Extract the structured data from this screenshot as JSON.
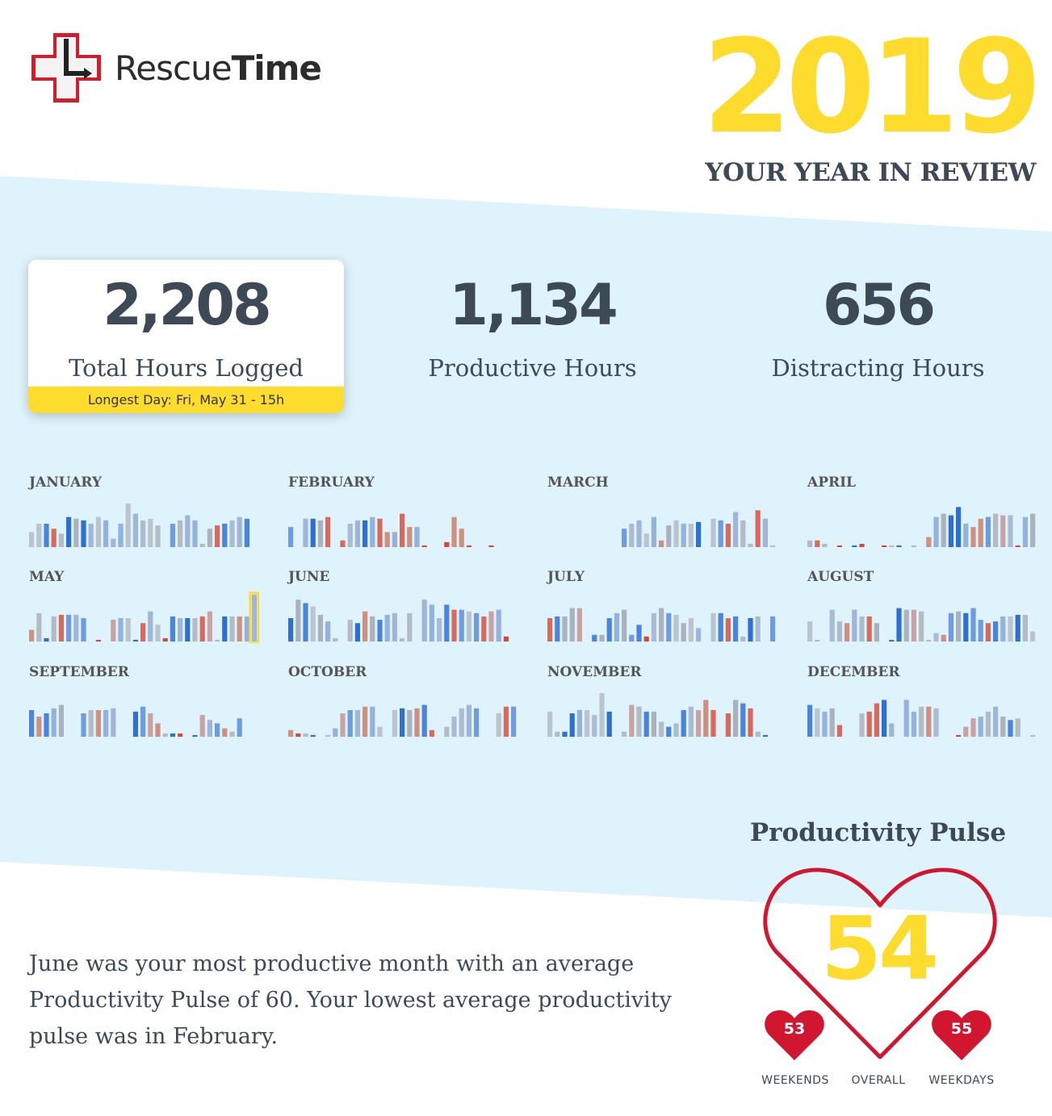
{
  "brand": {
    "name_light": "Rescue",
    "name_bold": "Time"
  },
  "header": {
    "year": "2019",
    "subtitle": "YOUR YEAR IN REVIEW"
  },
  "colors": {
    "accent_yellow": "#fddc2e",
    "band_blue": "#dff3fd",
    "heart_red": "#d0172f",
    "productive_blue": "#3a7bd5",
    "distracting_red": "#d44a3a",
    "neutral_gray": "#b0bcc6"
  },
  "stats": {
    "total": {
      "value": "2,208",
      "label": "Total Hours Logged",
      "footnote": "Longest Day: Fri, May 31 - 15h"
    },
    "productive": {
      "value": "1,134",
      "label": "Productive Hours"
    },
    "distracting": {
      "value": "656",
      "label": "Distracting Hours"
    }
  },
  "months": [
    {
      "name": "JANUARY",
      "days": [
        9,
        14,
        14,
        11,
        8,
        18,
        17,
        16,
        14,
        18,
        16,
        5,
        14,
        26,
        20,
        16,
        17,
        13,
        0,
        14,
        16,
        19,
        16,
        2,
        11,
        13,
        14,
        16,
        18,
        17,
        0
      ]
    },
    {
      "name": "FEBRUARY",
      "days": [
        12,
        0,
        17,
        17,
        16,
        18,
        0,
        4,
        14,
        16,
        16,
        18,
        17,
        9,
        9,
        20,
        12,
        12,
        1,
        0,
        0,
        3,
        18,
        11,
        1,
        0,
        0,
        1
      ]
    },
    {
      "name": "MARCH",
      "days": [
        0,
        0,
        0,
        0,
        0,
        0,
        0,
        0,
        0,
        0,
        11,
        14,
        16,
        8,
        18,
        4,
        13,
        16,
        14,
        14,
        15,
        0,
        17,
        16,
        14,
        21,
        16,
        2,
        22,
        17,
        1
      ]
    },
    {
      "name": "APRIL",
      "days": [
        4,
        4,
        2,
        0,
        1,
        0,
        1,
        2,
        0,
        0,
        1,
        1,
        1,
        0,
        1,
        0,
        6,
        18,
        20,
        19,
        24,
        14,
        12,
        17,
        18,
        20,
        19,
        19,
        1,
        18,
        20
      ]
    },
    {
      "name": "MAY",
      "days": [
        7,
        17,
        2,
        15,
        16,
        16,
        16,
        14,
        0,
        1,
        0,
        13,
        14,
        14,
        1,
        11,
        18,
        10,
        2,
        15,
        14,
        14,
        14,
        15,
        18,
        1,
        15,
        15,
        15,
        15,
        28
      ]
    },
    {
      "name": "JUNE",
      "days": [
        14,
        25,
        23,
        21,
        16,
        12,
        2,
        0,
        13,
        11,
        18,
        15,
        13,
        16,
        17,
        2,
        17,
        0,
        25,
        22,
        14,
        22,
        19,
        19,
        18,
        17,
        15,
        18,
        19,
        3,
        0
      ]
    },
    {
      "name": "JULY",
      "days": [
        14,
        15,
        15,
        20,
        20,
        0,
        4,
        4,
        14,
        17,
        19,
        4,
        10,
        3,
        17,
        20,
        17,
        16,
        11,
        14,
        8,
        0,
        17,
        17,
        14,
        15,
        3,
        14,
        15,
        0,
        15
      ]
    },
    {
      "name": "AUGUST",
      "days": [
        12,
        1,
        0,
        19,
        12,
        11,
        19,
        15,
        15,
        11,
        0,
        1,
        20,
        19,
        19,
        18,
        1,
        5,
        4,
        17,
        18,
        17,
        20,
        13,
        11,
        12,
        15,
        15,
        16,
        16,
        6
      ]
    },
    {
      "name": "SEPTEMBER",
      "days": [
        16,
        12,
        14,
        17,
        19,
        0,
        0,
        14,
        16,
        16,
        16,
        17,
        0,
        0,
        15,
        18,
        14,
        8,
        2,
        2,
        2,
        0,
        1,
        13,
        10,
        8,
        5,
        3,
        11,
        0
      ]
    },
    {
      "name": "OCTOBER",
      "days": [
        4,
        2,
        2,
        1,
        0,
        1,
        5,
        14,
        16,
        16,
        18,
        18,
        6,
        0,
        16,
        17,
        16,
        17,
        19,
        4,
        0,
        6,
        12,
        17,
        19,
        17,
        0,
        0,
        14,
        18,
        18
      ]
    },
    {
      "name": "NOVEMBER",
      "days": [
        15,
        3,
        3,
        14,
        16,
        16,
        13,
        26,
        15,
        0,
        3,
        19,
        18,
        15,
        15,
        9,
        6,
        8,
        16,
        18,
        16,
        22,
        16,
        0,
        14,
        22,
        20,
        17,
        3,
        1
      ]
    },
    {
      "name": "DECEMBER",
      "days": [
        19,
        17,
        15,
        17,
        7,
        0,
        0,
        14,
        15,
        20,
        22,
        8,
        0,
        22,
        15,
        18,
        18,
        17,
        0,
        0,
        1,
        6,
        11,
        12,
        15,
        18,
        12,
        10,
        11,
        0,
        1
      ]
    }
  ],
  "summary": "June was your most productive month with an average Productivity Pulse of 60. Your lowest average productivity pulse was in February.",
  "pulse": {
    "title": "Productivity Pulse",
    "overall": "54",
    "weekends": "53",
    "weekdays": "55",
    "weekends_label": "WEEKENDS",
    "overall_label": "OVERALL",
    "weekdays_label": "WEEKDAYS"
  }
}
